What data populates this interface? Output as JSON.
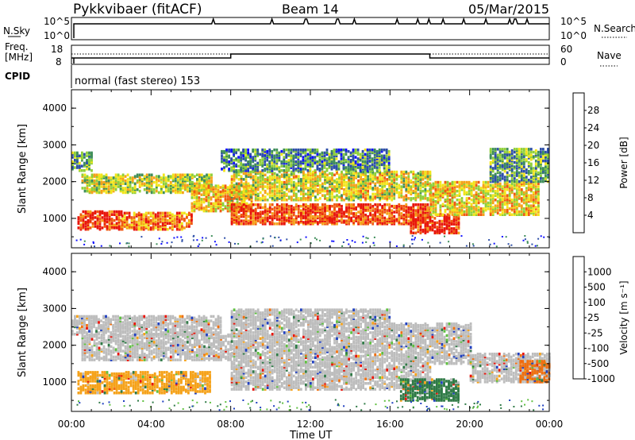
{
  "header": {
    "radar": "Pykkvibaer (fitACF)",
    "beam": "Beam 14",
    "date": "05/Mar/2015"
  },
  "noise_panel": {
    "left_label": "N.Sky",
    "left_ticks": [
      "10^5",
      "10^0"
    ],
    "right_ticks": [
      "10^5",
      "10^0"
    ],
    "right_label": "N.Search"
  },
  "freq_panel": {
    "left_label_1": "Freq.",
    "left_label_2": "[MHz]",
    "left_ticks": [
      "18",
      "8"
    ],
    "right_ticks": [
      "60",
      "0"
    ],
    "right_label": "Nave"
  },
  "cpid": {
    "label": "CPID",
    "value": "normal (fast stereo) 153"
  },
  "chart_data": [
    {
      "type": "heatmap",
      "name": "power",
      "ylabel": "Slant Range [km]",
      "yticks": [
        "1000",
        "2000",
        "3000",
        "4000"
      ],
      "ylim": [
        200,
        4500
      ],
      "colorbar_title": "Power [dB]",
      "colorbar_ticks": [
        "4",
        "8",
        "12",
        "16",
        "20",
        "24",
        "28"
      ],
      "colors": [
        "#1010ff",
        "#2e4fa8",
        "#3f8e5a",
        "#8fcf3a",
        "#f2e51a",
        "#f5a21a",
        "#f05a12",
        "#e8160c"
      ],
      "range_bands_km": [
        {
          "t0": 0.0,
          "t1": 1.0,
          "lo": 2300,
          "hi": 2800,
          "level": 0.35
        },
        {
          "t0": 0.3,
          "t1": 2.5,
          "lo": 700,
          "hi": 1200,
          "level": 0.9
        },
        {
          "t0": 2.5,
          "t1": 6.0,
          "lo": 700,
          "hi": 1150,
          "level": 0.75
        },
        {
          "t0": 0.5,
          "t1": 7.0,
          "lo": 1700,
          "hi": 2200,
          "level": 0.5
        },
        {
          "t0": 6.0,
          "t1": 9.0,
          "lo": 1200,
          "hi": 1900,
          "level": 0.65
        },
        {
          "t0": 8.0,
          "t1": 18.0,
          "lo": 850,
          "hi": 1400,
          "level": 0.85
        },
        {
          "t0": 8.0,
          "t1": 18.0,
          "lo": 1500,
          "hi": 2300,
          "level": 0.55
        },
        {
          "t0": 7.5,
          "t1": 16.0,
          "lo": 2300,
          "hi": 2900,
          "level": 0.3
        },
        {
          "t0": 17.0,
          "t1": 19.5,
          "lo": 600,
          "hi": 1100,
          "level": 0.9
        },
        {
          "t0": 18.0,
          "t1": 23.5,
          "lo": 1100,
          "hi": 2000,
          "level": 0.6
        },
        {
          "t0": 21.0,
          "t1": 24.0,
          "lo": 2000,
          "hi": 2900,
          "level": 0.35
        }
      ]
    },
    {
      "type": "heatmap",
      "name": "velocity",
      "ylabel": "Slant Range [km]",
      "yticks": [
        "1000",
        "2000",
        "3000",
        "4000"
      ],
      "ylim": [
        200,
        4500
      ],
      "colorbar_title": "Velocity [m s⁻¹]",
      "colorbar_ticks": [
        "1000",
        "500",
        "100",
        "25",
        "-25",
        "-100",
        "-500",
        "-1000"
      ],
      "colors": [
        "#2040c0",
        "#2f7a46",
        "#5fc040",
        "#bdbdbd",
        "#bdbdbd",
        "#f5a21a",
        "#f07010",
        "#e8160c"
      ],
      "range_bands_km": [
        {
          "t0": 0.0,
          "t1": 7.5,
          "lo": 2300,
          "hi": 2800,
          "color": "#bdbdbd"
        },
        {
          "t0": 0.3,
          "t1": 7.0,
          "lo": 700,
          "hi": 1300,
          "color": "#f5a21a"
        },
        {
          "t0": 0.5,
          "t1": 8.0,
          "lo": 1600,
          "hi": 2300,
          "color": "#bdbdbd"
        },
        {
          "t0": 8.0,
          "t1": 18.0,
          "lo": 800,
          "hi": 1500,
          "color": "#bdbdbd"
        },
        {
          "t0": 8.0,
          "t1": 20.0,
          "lo": 1500,
          "hi": 2600,
          "color": "#bdbdbd"
        },
        {
          "t0": 8.0,
          "t1": 16.0,
          "lo": 2600,
          "hi": 3000,
          "color": "#bdbdbd"
        },
        {
          "t0": 16.5,
          "t1": 19.5,
          "lo": 500,
          "hi": 1100,
          "color": "#2f7a46"
        },
        {
          "t0": 20.0,
          "t1": 24.0,
          "lo": 1000,
          "hi": 1800,
          "color": "#bdbdbd"
        },
        {
          "t0": 22.5,
          "t1": 24.0,
          "lo": 1000,
          "hi": 1600,
          "color": "#f07010"
        }
      ]
    }
  ],
  "time_axis": {
    "ticks": [
      "00:00",
      "04:00",
      "08:00",
      "12:00",
      "16:00",
      "20:00",
      "00:00"
    ],
    "label": "Time UT"
  }
}
